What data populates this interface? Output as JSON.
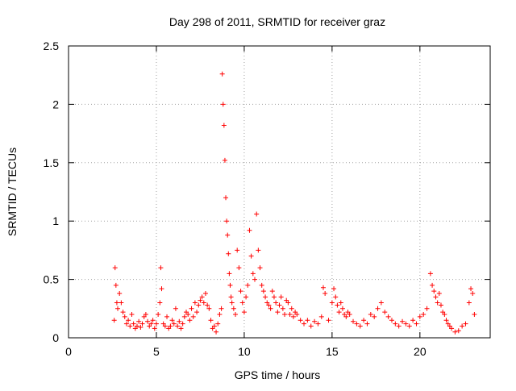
{
  "chart_data": {
    "type": "scatter",
    "title": "Day 298 of 2011, SRMTID for receiver graz",
    "xlabel": "GPS time / hours",
    "ylabel": "SRMTID / TECUs",
    "xlim": [
      0,
      24
    ],
    "ylim": [
      0,
      2.5
    ],
    "x_ticks": [
      0,
      5,
      10,
      15,
      20
    ],
    "x_tick_labels": [
      "0",
      "5",
      "10",
      "15",
      "20"
    ],
    "y_ticks": [
      0,
      0.5,
      1,
      1.5,
      2,
      2.5
    ],
    "y_tick_labels": [
      "0",
      "0.5",
      "1",
      "1.5",
      "2",
      "2.5"
    ],
    "grid": true,
    "marker": "plus",
    "colors": {
      "marker": "#ff0000",
      "grid": "#a0a0a0",
      "axis": "#000000"
    },
    "series": [
      {
        "name": "SRMTID",
        "x": [
          2.6,
          2.65,
          2.7,
          2.75,
          2.8,
          2.9,
          3.0,
          3.1,
          3.2,
          3.3,
          3.4,
          3.5,
          3.6,
          3.7,
          3.8,
          3.9,
          4.0,
          4.1,
          4.2,
          4.3,
          4.4,
          4.5,
          4.6,
          4.7,
          4.8,
          4.9,
          5.0,
          5.1,
          5.2,
          5.25,
          5.3,
          5.4,
          5.5,
          5.6,
          5.7,
          5.8,
          5.9,
          6.0,
          6.1,
          6.2,
          6.3,
          6.4,
          6.5,
          6.6,
          6.7,
          6.8,
          6.9,
          7.0,
          7.1,
          7.2,
          7.3,
          7.4,
          7.5,
          7.6,
          7.7,
          7.8,
          7.9,
          8.0,
          8.1,
          8.2,
          8.3,
          8.4,
          8.5,
          8.6,
          8.7,
          8.75,
          8.8,
          8.85,
          8.9,
          8.95,
          9.0,
          9.05,
          9.1,
          9.15,
          9.2,
          9.25,
          9.3,
          9.4,
          9.5,
          9.6,
          9.7,
          9.8,
          9.9,
          10.0,
          10.1,
          10.2,
          10.3,
          10.4,
          10.5,
          10.6,
          10.7,
          10.8,
          10.9,
          11.0,
          11.1,
          11.2,
          11.3,
          11.4,
          11.5,
          11.6,
          11.7,
          11.8,
          11.9,
          12.0,
          12.1,
          12.2,
          12.3,
          12.4,
          12.5,
          12.6,
          12.7,
          12.8,
          12.9,
          13.0,
          13.2,
          13.4,
          13.6,
          13.8,
          14.0,
          14.2,
          14.4,
          14.5,
          14.6,
          14.8,
          15.0,
          15.1,
          15.2,
          15.3,
          15.4,
          15.5,
          15.6,
          15.7,
          15.8,
          15.9,
          16.0,
          16.2,
          16.4,
          16.6,
          16.8,
          17.0,
          17.2,
          17.4,
          17.6,
          17.8,
          18.0,
          18.2,
          18.4,
          18.6,
          18.8,
          19.0,
          19.2,
          19.4,
          19.6,
          19.8,
          20.0,
          20.2,
          20.4,
          20.6,
          20.7,
          20.8,
          20.9,
          21.0,
          21.1,
          21.2,
          21.3,
          21.4,
          21.5,
          21.6,
          21.7,
          21.8,
          22.0,
          22.2,
          22.4,
          22.6,
          22.8,
          22.9,
          23.0,
          23.1
        ],
        "y": [
          0.15,
          0.6,
          0.45,
          0.3,
          0.25,
          0.38,
          0.3,
          0.22,
          0.18,
          0.12,
          0.15,
          0.1,
          0.2,
          0.12,
          0.08,
          0.1,
          0.14,
          0.09,
          0.12,
          0.18,
          0.2,
          0.14,
          0.1,
          0.12,
          0.15,
          0.08,
          0.12,
          0.2,
          0.3,
          0.6,
          0.42,
          0.12,
          0.1,
          0.18,
          0.08,
          0.1,
          0.15,
          0.12,
          0.25,
          0.1,
          0.14,
          0.08,
          0.12,
          0.18,
          0.22,
          0.2,
          0.15,
          0.25,
          0.18,
          0.3,
          0.22,
          0.28,
          0.32,
          0.35,
          0.3,
          0.38,
          0.28,
          0.25,
          0.15,
          0.08,
          0.1,
          0.05,
          0.12,
          0.2,
          0.25,
          2.26,
          2.0,
          1.82,
          1.52,
          1.2,
          1.0,
          0.88,
          0.72,
          0.55,
          0.45,
          0.35,
          0.3,
          0.25,
          0.2,
          0.75,
          0.6,
          0.4,
          0.3,
          0.22,
          0.35,
          0.45,
          0.92,
          0.7,
          0.55,
          0.5,
          1.06,
          0.75,
          0.6,
          0.45,
          0.4,
          0.35,
          0.3,
          0.28,
          0.25,
          0.4,
          0.35,
          0.3,
          0.22,
          0.28,
          0.35,
          0.25,
          0.2,
          0.32,
          0.3,
          0.2,
          0.25,
          0.18,
          0.22,
          0.2,
          0.15,
          0.12,
          0.15,
          0.1,
          0.14,
          0.12,
          0.18,
          0.43,
          0.38,
          0.15,
          0.3,
          0.42,
          0.35,
          0.28,
          0.22,
          0.3,
          0.25,
          0.2,
          0.18,
          0.22,
          0.2,
          0.14,
          0.12,
          0.1,
          0.15,
          0.12,
          0.2,
          0.18,
          0.25,
          0.3,
          0.22,
          0.18,
          0.15,
          0.12,
          0.1,
          0.14,
          0.12,
          0.1,
          0.15,
          0.12,
          0.18,
          0.2,
          0.25,
          0.55,
          0.45,
          0.4,
          0.35,
          0.3,
          0.38,
          0.28,
          0.22,
          0.2,
          0.15,
          0.12,
          0.1,
          0.08,
          0.05,
          0.06,
          0.1,
          0.12,
          0.3,
          0.42,
          0.38,
          0.2
        ]
      }
    ]
  }
}
